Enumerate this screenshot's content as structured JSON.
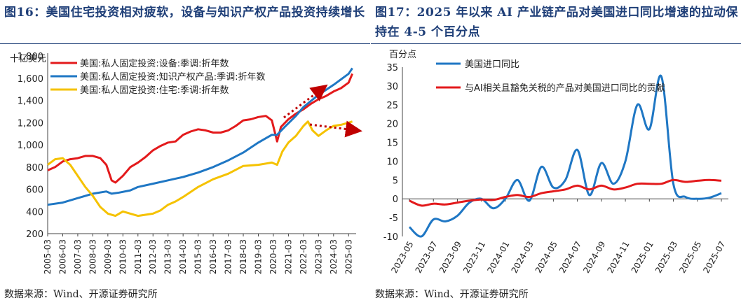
{
  "charts": [
    {
      "title": "图16：美国住宅投资相对疲软，设备与知识产权产品投资持续增长",
      "source": "数据来源：Wind、开源证券研究所",
      "chart_data": {
        "type": "line",
        "yunit": "十亿美元",
        "ylim": [
          200,
          1800
        ],
        "yticks": [
          200,
          400,
          600,
          800,
          1000,
          1200,
          1400,
          1600,
          1800
        ],
        "xlim": [
          2005.0,
          2025.5
        ],
        "xticks": [
          "2005-03",
          "2006-03",
          "2007-03",
          "2008-03",
          "2009-03",
          "2010-03",
          "2011-03",
          "2012-03",
          "2013-03",
          "2014-03",
          "2015-03",
          "2016-03",
          "2017-03",
          "2018-03",
          "2019-03",
          "2020-03",
          "2021-03",
          "2022-03",
          "2023-03",
          "2024-03",
          "2025-03"
        ],
        "legend_position": "top-left",
        "series": [
          {
            "name": "美国:私人固定投资:设备:季调:折年数",
            "color": "#e31a1c",
            "x": [
              2005.0,
              2005.5,
              2006.0,
              2006.5,
              2007.0,
              2007.5,
              2008.0,
              2008.5,
              2008.9,
              2009.25,
              2009.5,
              2010.0,
              2010.5,
              2011.0,
              2011.5,
              2012.0,
              2012.5,
              2013.0,
              2013.5,
              2014.0,
              2014.5,
              2015.0,
              2015.5,
              2016.0,
              2016.5,
              2017.0,
              2017.5,
              2018.0,
              2018.5,
              2019.0,
              2019.5,
              2019.9,
              2020.25,
              2020.5,
              2021.0,
              2021.5,
              2022.0,
              2022.5,
              2023.0,
              2023.5,
              2024.0,
              2024.5,
              2025.0,
              2025.25
            ],
            "y": [
              770,
              800,
              850,
              870,
              880,
              900,
              900,
              880,
              820,
              680,
              660,
              720,
              800,
              840,
              890,
              950,
              990,
              1020,
              1030,
              1090,
              1120,
              1140,
              1130,
              1110,
              1110,
              1130,
              1170,
              1220,
              1230,
              1250,
              1260,
              1220,
              1030,
              1160,
              1230,
              1280,
              1320,
              1370,
              1410,
              1440,
              1480,
              1510,
              1560,
              1640
            ]
          },
          {
            "name": "美国:私人固定投资:知识产权产品:季调:折年数",
            "color": "#1f77c4",
            "x": [
              2005.0,
              2006.0,
              2007.0,
              2008.0,
              2008.9,
              2009.25,
              2009.75,
              2010.5,
              2011.0,
              2012.0,
              2013.0,
              2014.0,
              2015.0,
              2016.0,
              2017.0,
              2018.0,
              2019.0,
              2019.9,
              2020.25,
              2020.75,
              2021.5,
              2022.0,
              2023.0,
              2024.0,
              2025.0,
              2025.25
            ],
            "y": [
              460,
              480,
              520,
              560,
              580,
              560,
              570,
              590,
              620,
              650,
              680,
              710,
              750,
              800,
              860,
              930,
              1020,
              1090,
              1090,
              1160,
              1260,
              1340,
              1450,
              1540,
              1640,
              1690
            ]
          },
          {
            "name": "美国:私人固定投资:住宅:季调:折年数",
            "color": "#f5c200",
            "x": [
              2005.0,
              2005.5,
              2006.0,
              2006.5,
              2007.0,
              2007.5,
              2008.0,
              2008.5,
              2009.0,
              2009.5,
              2010.0,
              2010.5,
              2011.0,
              2011.5,
              2012.0,
              2012.5,
              2013.0,
              2013.5,
              2014.0,
              2015.0,
              2016.0,
              2017.0,
              2018.0,
              2019.0,
              2019.9,
              2020.25,
              2020.6,
              2021.0,
              2021.5,
              2022.0,
              2022.3,
              2022.6,
              2023.0,
              2023.5,
              2024.0,
              2024.5,
              2025.0,
              2025.25
            ],
            "y": [
              820,
              870,
              880,
              820,
              720,
              620,
              540,
              440,
              380,
              360,
              400,
              380,
              360,
              370,
              380,
              410,
              460,
              490,
              530,
              620,
              690,
              740,
              810,
              820,
              840,
              820,
              940,
              1020,
              1080,
              1170,
              1210,
              1130,
              1080,
              1130,
              1170,
              1180,
              1200,
              1210
            ]
          }
        ],
        "annotations": [
          "red dotted arrow rising toward top-right",
          "red dotted arrow pointing right near top-right"
        ]
      }
    },
    {
      "title": "图17：2025 年以来 AI 产业链产品对美国进口同比增速的拉动保持在 4-5 个百分点",
      "source": "数据来源：Wind、开源证券研究所",
      "chart_data": {
        "type": "line",
        "yunit": "百分点",
        "ylim": [
          -10,
          35
        ],
        "yticks": [
          -10,
          -5,
          0,
          5,
          10,
          15,
          20,
          25,
          30,
          35
        ],
        "xticks": [
          "2023-05",
          "2023-07",
          "2023-09",
          "2023-11",
          "2024-01",
          "2024-03",
          "2024-05",
          "2024-07",
          "2024-09",
          "2024-11",
          "2025-01",
          "2025-03",
          "2025-05",
          "2025-07"
        ],
        "legend_position": "top-left",
        "series": [
          {
            "name": "美国进口同比",
            "color": "#1f77c4",
            "x": [
              "2023-05",
              "2023-06",
              "2023-07",
              "2023-08",
              "2023-09",
              "2023-10",
              "2023-11",
              "2023-12",
              "2024-01",
              "2024-02",
              "2024-03",
              "2024-04",
              "2024-05",
              "2024-06",
              "2024-07",
              "2024-08",
              "2024-09",
              "2024-10",
              "2024-11",
              "2024-12",
              "2025-01",
              "2025-02",
              "2025-03",
              "2025-04",
              "2025-05",
              "2025-06",
              "2025-07"
            ],
            "y": [
              -7.5,
              -10,
              -5.5,
              -6,
              -4.5,
              -1,
              0,
              -2.5,
              0,
              5,
              -0.5,
              8.5,
              3,
              5,
              13,
              1,
              9.5,
              4,
              10,
              25,
              18.5,
              32.5,
              4,
              0.5,
              0,
              0.3,
              1.5
            ]
          },
          {
            "name": "与AI相关且豁免关税的产品对美国进口同比的贡献",
            "color": "#e31a1c",
            "x": [
              "2023-05",
              "2023-06",
              "2023-07",
              "2023-08",
              "2023-09",
              "2023-10",
              "2023-11",
              "2023-12",
              "2024-01",
              "2024-02",
              "2024-03",
              "2024-04",
              "2024-05",
              "2024-06",
              "2024-07",
              "2024-08",
              "2024-09",
              "2024-10",
              "2024-11",
              "2024-12",
              "2025-01",
              "2025-02",
              "2025-03",
              "2025-04",
              "2025-05",
              "2025-06",
              "2025-07"
            ],
            "y": [
              -0.5,
              -1.8,
              -1.3,
              -1.5,
              -1,
              -0.5,
              -0.2,
              -0.3,
              0.5,
              1,
              0.5,
              1.5,
              2,
              2.5,
              3.5,
              2.5,
              3.5,
              2.5,
              3,
              4,
              4,
              4,
              5,
              4.5,
              4.8,
              5,
              4.8
            ]
          }
        ]
      }
    }
  ]
}
